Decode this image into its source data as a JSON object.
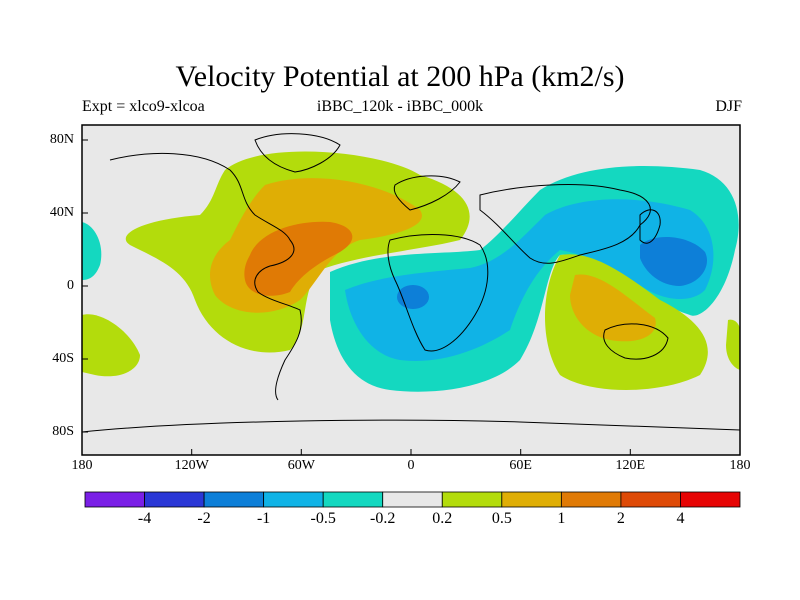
{
  "title": "Velocity Potential at 200 hPa (km2/s)",
  "subtitle_left": "Expt = xlco9-xlcoa",
  "subtitle_center": "iBBC_120k - iBBC_000k",
  "subtitle_right": "DJF",
  "y_ticks": [
    "80N",
    "40N",
    "0",
    "40S",
    "80S"
  ],
  "x_ticks": [
    "180",
    "120W",
    "60W",
    "0",
    "60E",
    "120E",
    "180"
  ],
  "colorbar": {
    "colors": [
      "#7a1fe6",
      "#2a37d6",
      "#0d7fd8",
      "#10b3e6",
      "#14d8c0",
      "#e8e8e8",
      "#b3dc0c",
      "#dfae05",
      "#e07a05",
      "#de4a06",
      "#e60404"
    ],
    "labels": [
      "-4",
      "-2",
      "-1",
      "-0.5",
      "-0.2",
      "0.2",
      "0.5",
      "1",
      "2",
      "4"
    ]
  }
}
